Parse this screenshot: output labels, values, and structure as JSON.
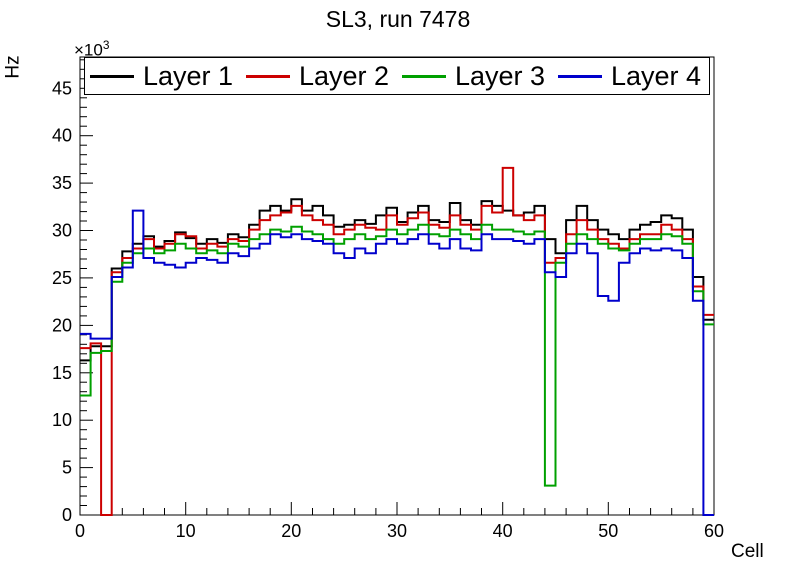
{
  "chart_data": {
    "type": "step-line",
    "title": "SL3, run 7478",
    "xlabel": "Cell",
    "ylabel": "Hz",
    "y_exponent": {
      "base": "×10",
      "power": "3"
    },
    "xlim": [
      0,
      60
    ],
    "ylim": [
      0,
      48.3
    ],
    "x_ticks": [
      0,
      10,
      20,
      30,
      40,
      50,
      60
    ],
    "y_ticks": [
      0,
      5,
      10,
      15,
      20,
      25,
      30,
      35,
      40,
      45
    ],
    "x_minor_step": 2,
    "y_minor_step": 1,
    "n_bins": 60,
    "bin_width": 1,
    "values_unit": "values are in units of 10^3 Hz as shown by the ×10³ axis multiplier",
    "legend_position": "top, single row inside frame",
    "grid": false,
    "series": [
      {
        "name": "Layer 1",
        "color": "#000000",
        "values": [
          16.3,
          17.8,
          17.8,
          26.0,
          27.8,
          28.6,
          29.4,
          28.3,
          28.9,
          29.8,
          29.2,
          28.6,
          29.1,
          28.7,
          29.6,
          29.3,
          30.6,
          32.1,
          32.6,
          32.1,
          33.3,
          32.1,
          32.6,
          31.6,
          30.4,
          30.6,
          31.1,
          30.7,
          31.6,
          32.4,
          30.9,
          31.9,
          32.6,
          31.1,
          30.9,
          32.9,
          31.1,
          30.6,
          33.1,
          32.6,
          32.1,
          31.6,
          31.9,
          32.6,
          29.1,
          27.6,
          31.1,
          32.6,
          31.1,
          30.1,
          29.6,
          29.1,
          30.1,
          30.6,
          30.9,
          31.6,
          31.3,
          30.1,
          25.1,
          20.6
        ]
      },
      {
        "name": "Layer 2",
        "color": "#cc0000",
        "values": [
          17.6,
          18.1,
          0.0,
          25.6,
          27.1,
          28.1,
          29.1,
          28.1,
          28.6,
          29.6,
          29.4,
          28.1,
          28.6,
          28.3,
          29.1,
          28.9,
          30.1,
          31.1,
          31.6,
          31.9,
          32.6,
          31.6,
          31.1,
          30.6,
          29.6,
          30.1,
          30.6,
          30.3,
          30.1,
          31.6,
          30.6,
          31.3,
          31.9,
          30.6,
          30.3,
          31.6,
          30.6,
          30.1,
          32.6,
          31.9,
          36.6,
          31.6,
          31.1,
          31.6,
          26.6,
          27.1,
          29.6,
          31.1,
          30.1,
          29.1,
          28.6,
          28.1,
          29.1,
          29.6,
          29.6,
          30.6,
          30.1,
          29.1,
          24.1,
          21.1
        ]
      },
      {
        "name": "Layer 3",
        "color": "#00a000",
        "values": [
          12.6,
          17.1,
          17.3,
          24.6,
          26.6,
          27.6,
          28.1,
          27.6,
          27.9,
          28.6,
          28.1,
          27.6,
          27.9,
          27.6,
          28.6,
          28.3,
          29.1,
          29.6,
          30.1,
          29.9,
          30.4,
          29.9,
          29.6,
          29.1,
          28.6,
          29.1,
          29.6,
          29.1,
          29.4,
          30.1,
          29.6,
          30.1,
          30.6,
          29.6,
          29.4,
          30.1,
          29.6,
          29.1,
          30.6,
          30.1,
          30.1,
          29.9,
          29.6,
          29.9,
          3.1,
          26.6,
          28.6,
          29.6,
          29.1,
          28.6,
          28.1,
          27.9,
          28.6,
          29.1,
          29.1,
          29.6,
          29.4,
          28.6,
          23.6,
          20.1
        ]
      },
      {
        "name": "Layer 4",
        "color": "#0000cc",
        "values": [
          19.1,
          18.6,
          18.6,
          25.1,
          26.1,
          32.1,
          27.1,
          26.6,
          26.4,
          26.1,
          26.6,
          27.1,
          26.9,
          26.6,
          27.6,
          27.3,
          28.1,
          28.6,
          29.6,
          29.3,
          29.6,
          29.1,
          28.9,
          28.6,
          27.6,
          27.1,
          28.1,
          27.6,
          28.6,
          29.1,
          28.6,
          29.1,
          29.6,
          28.6,
          28.1,
          29.1,
          28.1,
          27.9,
          29.6,
          29.1,
          29.1,
          28.9,
          28.6,
          29.1,
          25.6,
          25.1,
          27.6,
          28.6,
          27.6,
          23.1,
          22.6,
          26.6,
          27.6,
          28.1,
          27.9,
          28.1,
          27.9,
          27.1,
          22.6,
          0.0
        ]
      }
    ]
  }
}
